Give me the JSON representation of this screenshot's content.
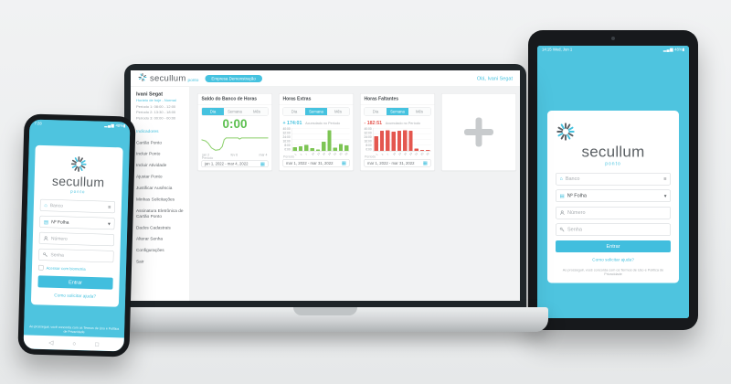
{
  "colors": {
    "accent": "#45c2df",
    "green_number": "#5bbf4e",
    "green_bar": "#7dc554",
    "red": "#e4574f"
  },
  "brand": {
    "name": "secullum",
    "product": "ponto"
  },
  "icons": {
    "bank": "⌂",
    "sheet": "▤",
    "list": "≡",
    "caret": "▾",
    "calendar": "▦",
    "signal": "▂▄▆",
    "battery": "▮",
    "nav_back": "◁",
    "nav_home": "○",
    "nav_recents": "□"
  },
  "login": {
    "banco_placeholder": "Banco",
    "folha_value": "Nº Folha",
    "numero_placeholder": "Número",
    "senha_placeholder": "Senha",
    "biometria_label": "Acessar com biometria",
    "entrar_label": "Entrar",
    "help_link": "Como solicitar ajuda?",
    "terms": "Ao prosseguir, você concorda com os Termos de Uso e Política de Privacidade"
  },
  "phone": {
    "status": {
      "time": "7:28",
      "battery": "48%"
    }
  },
  "tablet": {
    "status": {
      "time": "14:15  Wed, Jun 1",
      "battery": "48%"
    }
  },
  "laptop": {
    "header": {
      "company_badge": "Empresa Demonstração",
      "greeting": "Olá, Ivani Segat"
    },
    "sidebar": {
      "user": "Ivani Segat",
      "schedule_link": "Horário de hoje - Normal",
      "periods": [
        "Período 1: 08:00 - 12:00",
        "Período 2: 13:30 - 18:00",
        "Período 3: 00:00 - 00:00"
      ],
      "items": [
        "Indicadores",
        "Cartão Ponto",
        "Incluir Ponto",
        "Incluir Atividade",
        "Ajustar Ponto",
        "Justificar Ausência",
        "Minhas Solicitações",
        "Assinatura Eletrônica de Cartão Ponto",
        "Dados Cadastrais",
        "Alterar Senha",
        "Configurações",
        "Sair"
      ]
    },
    "cards": {
      "tabs": [
        "Dia",
        "Semana",
        "Mês"
      ],
      "banco": {
        "title": "Saldo do Banco de Horas",
        "value": "0:00",
        "period_label": "Período",
        "date_range": "jan 1, 2022 - mar 4, 2022",
        "x_labels": [
          "jan 2",
          "fev 6",
          "mar 4"
        ],
        "line_points": [
          [
            0,
            13
          ],
          [
            6,
            15
          ],
          [
            10,
            19
          ],
          [
            15,
            27
          ],
          [
            21,
            31
          ],
          [
            27,
            30
          ],
          [
            31,
            25
          ],
          [
            34,
            13
          ],
          [
            37,
            10
          ],
          [
            55,
            10
          ],
          [
            57,
            12
          ],
          [
            60,
            10
          ],
          [
            100,
            10
          ]
        ]
      },
      "extras": {
        "title": "Horas Extras",
        "value": "+ 174:01",
        "value_label": "Acumulado no Período",
        "period_label": "Período",
        "date_range": "mar 1, 2022 - mar 31, 2022",
        "y_labels": [
          "40:00",
          "32:00",
          "24:00",
          "16:00",
          "8:00",
          "0:00"
        ],
        "bars": [
          7,
          8,
          11,
          5,
          3,
          16,
          36,
          6,
          12,
          10
        ],
        "max": 40,
        "x_labels": [
          "1",
          "4",
          "7",
          "10",
          "13",
          "16",
          "19",
          "22",
          "25",
          "28"
        ]
      },
      "faltas": {
        "title": "Horas Faltantes",
        "value": "- 182:51",
        "value_label": "Acumulado no Período",
        "period_label": "Período",
        "date_range": "mar 1, 2022 - mar 31, 2022",
        "y_labels": [
          "40:00",
          "32:00",
          "24:00",
          "16:00",
          "8:00",
          "0:00"
        ],
        "bars": [
          26,
          35,
          36,
          34,
          35,
          36,
          35,
          4,
          2,
          2
        ],
        "max": 40,
        "x_labels": [
          "1",
          "4",
          "7",
          "10",
          "13",
          "16",
          "19",
          "22",
          "25",
          "28"
        ]
      }
    }
  }
}
